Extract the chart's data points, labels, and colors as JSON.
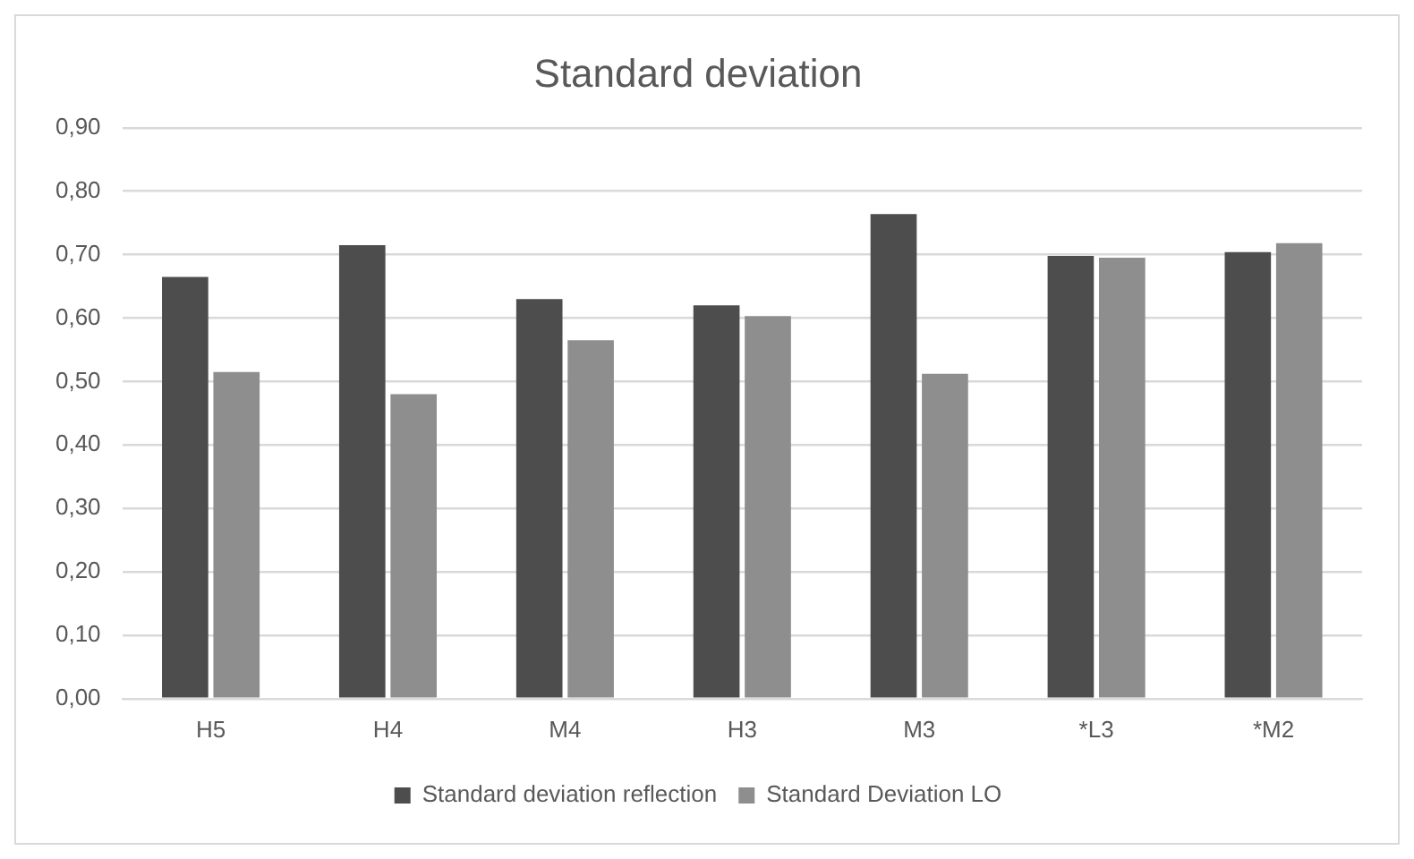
{
  "chart_data": {
    "type": "bar",
    "title": "Standard deviation",
    "categories": [
      "H5",
      "H4",
      "M4",
      "H3",
      "M3",
      "*L3",
      "*M2"
    ],
    "series": [
      {
        "name": "Standard deviation reflection",
        "color": "#4d4d4d",
        "values": [
          0.665,
          0.715,
          0.63,
          0.62,
          0.764,
          0.698,
          0.704
        ]
      },
      {
        "name": "Standard Deviation LO",
        "color": "#8e8e8e",
        "values": [
          0.515,
          0.48,
          0.565,
          0.603,
          0.512,
          0.695,
          0.718
        ]
      }
    ],
    "ylim": [
      0,
      0.9
    ],
    "yticks": [
      {
        "value": 0,
        "label": "0,00"
      },
      {
        "value": 0.1,
        "label": "0,10"
      },
      {
        "value": 0.2,
        "label": "0,20"
      },
      {
        "value": 0.3,
        "label": "0,30"
      },
      {
        "value": 0.4,
        "label": "0,40"
      },
      {
        "value": 0.5,
        "label": "0,50"
      },
      {
        "value": 0.6,
        "label": "0,60"
      },
      {
        "value": 0.7,
        "label": "0,70"
      },
      {
        "value": 0.8,
        "label": "0,80"
      },
      {
        "value": 0.9,
        "label": "0,90"
      }
    ],
    "grid": "y",
    "legend": "bottom"
  }
}
